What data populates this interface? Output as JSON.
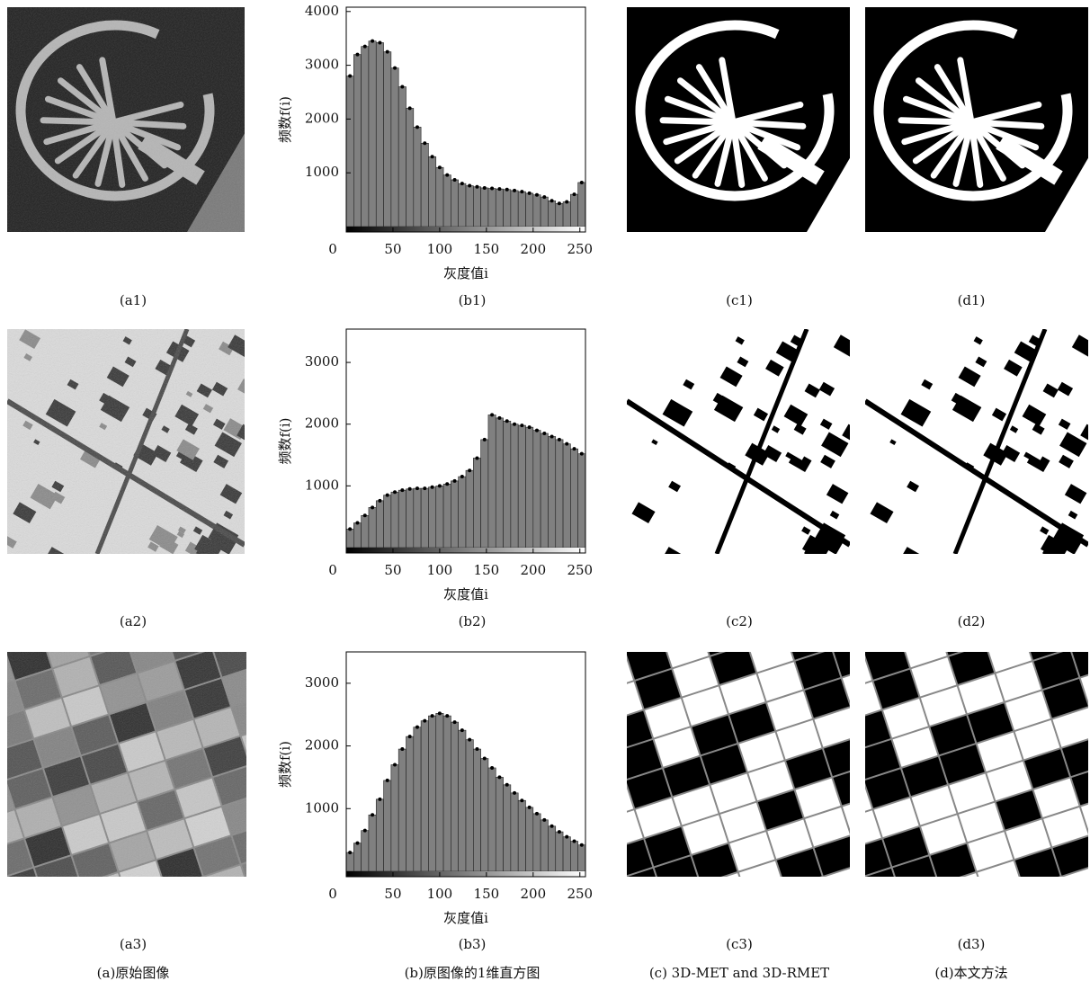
{
  "chart_data": [
    {
      "type": "histogram",
      "ylabel": "频数f(i)",
      "xlabel": "灰度值i",
      "bins": [
        0,
        8,
        16,
        24,
        32,
        40,
        48,
        56,
        64,
        72,
        80,
        88,
        96,
        104,
        112,
        120,
        128,
        136,
        144,
        152,
        160,
        168,
        176,
        184,
        192,
        200,
        208,
        216,
        224,
        232,
        240,
        248,
        256
      ],
      "values": [
        2800,
        3200,
        3350,
        3450,
        3420,
        3250,
        2950,
        2600,
        2200,
        1850,
        1550,
        1300,
        1100,
        960,
        870,
        800,
        760,
        740,
        720,
        710,
        700,
        690,
        670,
        650,
        620,
        590,
        550,
        480,
        430,
        460,
        600,
        820
      ],
      "color": "#808080",
      "xlim": [
        0,
        256
      ],
      "ylim": [
        0,
        4080
      ],
      "xticks": [
        0,
        50,
        100,
        150,
        200,
        250
      ],
      "yticks": [
        1000,
        2000,
        3000,
        4000
      ]
    },
    {
      "type": "histogram",
      "ylabel": "频数f(i)",
      "xlabel": "灰度值i",
      "bins": [
        0,
        8,
        16,
        24,
        32,
        40,
        48,
        56,
        64,
        72,
        80,
        88,
        96,
        104,
        112,
        120,
        128,
        136,
        144,
        152,
        160,
        168,
        176,
        184,
        192,
        200,
        208,
        216,
        224,
        232,
        240,
        248,
        256
      ],
      "values": [
        300,
        400,
        520,
        650,
        760,
        850,
        900,
        930,
        950,
        960,
        960,
        980,
        1000,
        1030,
        1080,
        1150,
        1250,
        1450,
        1750,
        2150,
        2100,
        2050,
        2000,
        1980,
        1950,
        1900,
        1850,
        1800,
        1750,
        1680,
        1600,
        1520
      ],
      "color": "#808080",
      "xlim": [
        0,
        256
      ],
      "ylim": [
        0,
        3540
      ],
      "xticks": [
        0,
        50,
        100,
        150,
        200,
        250
      ],
      "yticks": [
        1000,
        2000,
        3000
      ]
    },
    {
      "type": "histogram",
      "ylabel": "频数f(i)",
      "xlabel": "灰度值i",
      "bins": [
        0,
        8,
        16,
        24,
        32,
        40,
        48,
        56,
        64,
        72,
        80,
        88,
        96,
        104,
        112,
        120,
        128,
        136,
        144,
        152,
        160,
        168,
        176,
        184,
        192,
        200,
        208,
        216,
        224,
        232,
        240,
        248,
        256
      ],
      "values": [
        300,
        450,
        650,
        900,
        1150,
        1450,
        1700,
        1950,
        2150,
        2300,
        2400,
        2480,
        2520,
        2480,
        2380,
        2250,
        2100,
        1950,
        1800,
        1650,
        1500,
        1380,
        1250,
        1130,
        1020,
        920,
        820,
        720,
        630,
        550,
        480,
        420
      ],
      "color": "#808080",
      "xlim": [
        0,
        256
      ],
      "ylim": [
        0,
        3500
      ],
      "xticks": [
        0,
        50,
        100,
        150,
        200,
        250
      ],
      "yticks": [
        1000,
        2000,
        3000
      ]
    }
  ],
  "captions": [
    [
      "(a1)",
      "(b1)",
      "(c1)",
      "(d1)"
    ],
    [
      "(a2)",
      "(b2)",
      "(c2)",
      "(d2)"
    ],
    [
      "(a3)",
      "(b3)",
      "(c3)",
      "(d3)"
    ]
  ],
  "column_labels": [
    "(a)原始图像",
    "(b)原图像的1维直方图",
    "(c) 3D-MET and 3D-RMET",
    "(d)本文方法"
  ]
}
